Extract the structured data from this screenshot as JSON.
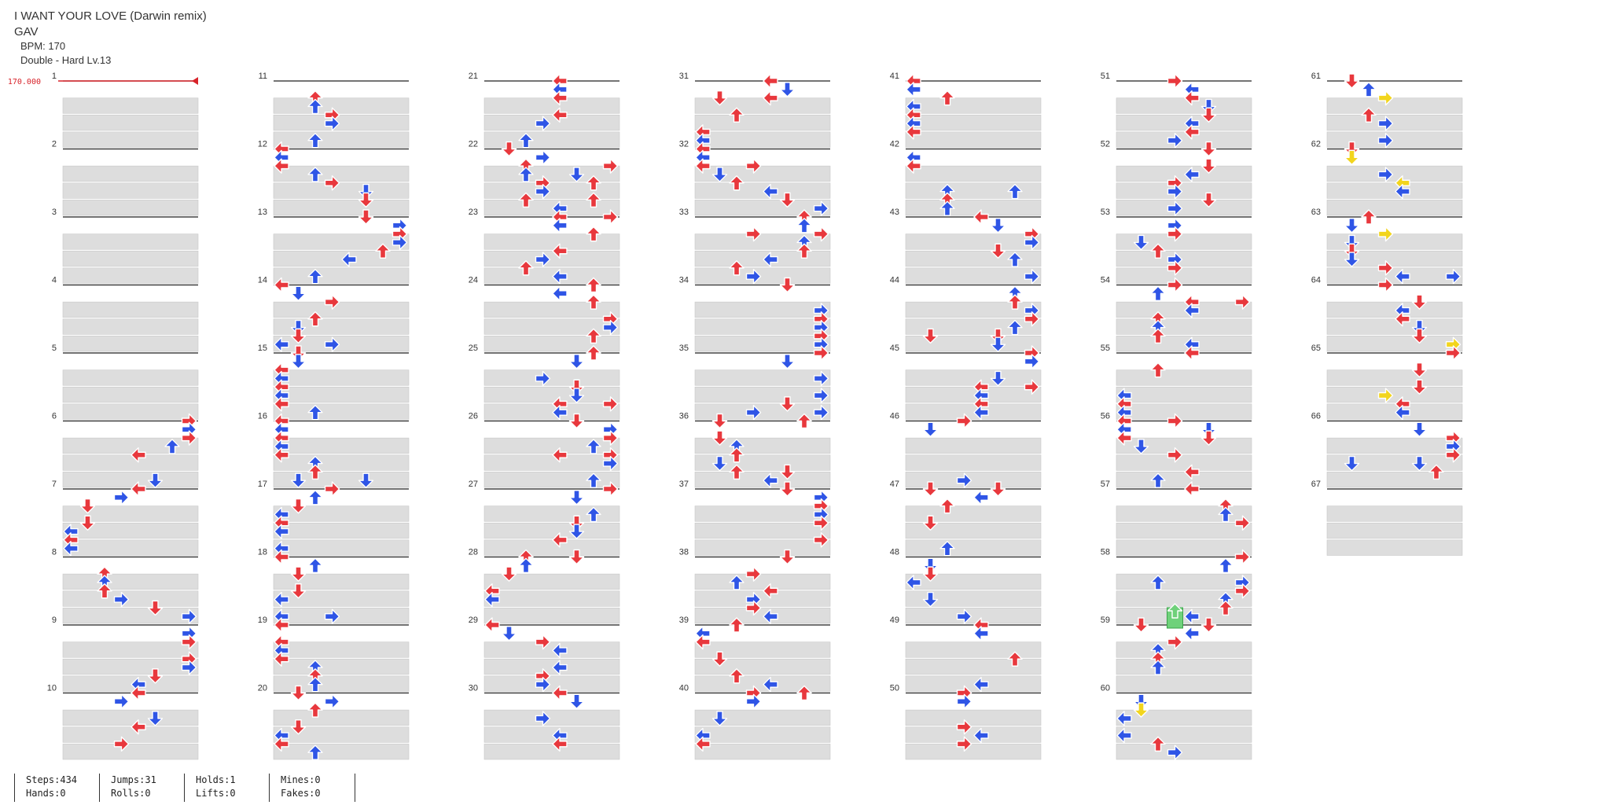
{
  "song": {
    "title": "I WANT YOUR LOVE (Darwin remix)",
    "artist": "GAV",
    "bpm_label": "BPM: 170",
    "difficulty_label": "Double - Hard Lv.13",
    "bpm_marker": "170.000"
  },
  "measures": {
    "count": 67,
    "per_column": 10,
    "first_measure_of_column": [
      1,
      11,
      21,
      31,
      41,
      51,
      61
    ]
  },
  "colors": {
    "quarter_note": "#e8383d",
    "eighth_note": "#2f55e6",
    "sixteenth_note": "#f2d51d",
    "hold_head": "#6fd17a",
    "bpm_marker": "#d8232a",
    "row_shade": "#dddddd",
    "measure_line": "#222222"
  },
  "stats": [
    {
      "line1": "Steps:434",
      "line2": "Hands:0"
    },
    {
      "line1": "Jumps:31",
      "line2": "Rolls:0"
    },
    {
      "line1": "Holds:1",
      "line2": "Lifts:0"
    },
    {
      "line1": "Mines:0",
      "line2": "Fakes:0"
    }
  ]
}
